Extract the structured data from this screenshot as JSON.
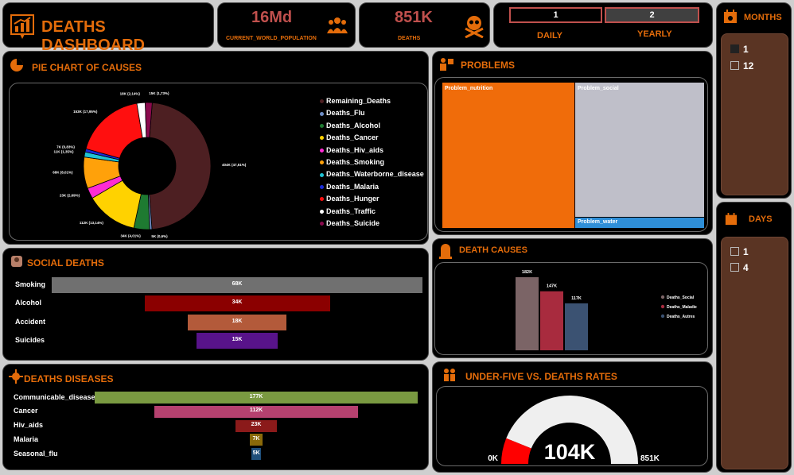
{
  "header": {
    "title": "DEATHS DASHBOARD"
  },
  "kpis": {
    "population": {
      "value": "16Md",
      "label": "CURRENT_WORLD_POPULATION"
    },
    "deaths": {
      "value": "851K",
      "label": "DEATHS"
    }
  },
  "toggle": {
    "daily": {
      "num": "1",
      "label": "DAILY"
    },
    "yearly": {
      "num": "2",
      "label": "YEARLY"
    }
  },
  "months": {
    "title": "MONTHS",
    "items": [
      {
        "label": "1",
        "checked": true
      },
      {
        "label": "12",
        "checked": false
      }
    ]
  },
  "days": {
    "title": "DAYS",
    "items": [
      {
        "label": "1",
        "checked": false
      },
      {
        "label": "4",
        "checked": false
      }
    ]
  },
  "pie": {
    "title": "PIE CHART OF CAUSES",
    "chart_data": {
      "type": "pie",
      "slices": [
        {
          "name": "Remaining_Deaths",
          "value": 404,
          "color": "#4d1f22",
          "label": "404K (47,51%)"
        },
        {
          "name": "Deaths_Flu",
          "value": 5,
          "color": "#6f8fc7",
          "label": "5K (0,6%)"
        },
        {
          "name": "Deaths_Alcohol",
          "value": 34,
          "color": "#1e7a31",
          "label": "34K (4,01%)"
        },
        {
          "name": "Deaths_Cancer",
          "value": 112,
          "color": "#ffd200",
          "label": "112K (13,14%)"
        },
        {
          "name": "Deaths_Hiv_aids",
          "value": 23,
          "color": "#ff2bd4",
          "label": "23K (2,69%)"
        },
        {
          "name": "Deaths_Smoking",
          "value": 68,
          "color": "#ffa10a",
          "label": "68K (8,01%)"
        },
        {
          "name": "Deaths_Waterborne_disease",
          "value": 11,
          "color": "#1fc3d4",
          "label": "11K (1,35%)"
        },
        {
          "name": "Deaths_Malaria",
          "value": 7,
          "color": "#1a2bd8",
          "label": "7K (0,83%)"
        },
        {
          "name": "Deaths_Hunger",
          "value": 153,
          "color": "#ff0f0f",
          "label": "153K (17,95%)"
        },
        {
          "name": "Deaths_Traffic",
          "value": 18,
          "color": "#ffffff",
          "label": "18K (2,14%)"
        },
        {
          "name": "Deaths_Suicide",
          "value": 15,
          "color": "#8a0a4d",
          "label": "15K (1,73%)"
        }
      ]
    }
  },
  "problems": {
    "title": "PROBLEMS",
    "chart_data": {
      "type": "treemap",
      "items": [
        {
          "name": "Problem_nutrition",
          "color": "#f06c0a"
        },
        {
          "name": "Problem_social",
          "color": "#bfbfc9"
        },
        {
          "name": "Problem_water",
          "color": "#2f8fd8"
        }
      ]
    }
  },
  "social": {
    "title": "SOCIAL DEATHS",
    "chart_data": {
      "type": "bar",
      "categories": [
        "Smoking",
        "Alcohol",
        "Accident",
        "Suicides"
      ],
      "values": [
        68,
        34,
        18,
        15
      ],
      "labels": [
        "68K",
        "34K",
        "18K",
        "15K"
      ],
      "colors": [
        "#707070",
        "#8b0000",
        "#b35a3a",
        "#58138a"
      ]
    }
  },
  "causes": {
    "title": "DEATH CAUSES",
    "chart_data": {
      "type": "bar",
      "categories": [
        "Deaths_Social",
        "Deaths_Maladie",
        "Deaths_Autres"
      ],
      "values": [
        182,
        147,
        117
      ],
      "labels": [
        "182K",
        "147K",
        "117K"
      ],
      "colors": [
        "#7b6466",
        "#a82b3e",
        "#3b5272"
      ]
    }
  },
  "diseases": {
    "title": "DEATHS DISEASES",
    "chart_data": {
      "type": "bar",
      "categories": [
        "Communicable_disease",
        "Cancer",
        "Hiv_aids",
        "Malaria",
        "Seasonal_flu"
      ],
      "values": [
        177,
        112,
        23,
        7,
        5
      ],
      "labels": [
        "177K",
        "112K",
        "23K",
        "7K",
        "5K"
      ],
      "colors": [
        "#7a9a41",
        "#b5416f",
        "#8b1a1a",
        "#8a6a0a",
        "#1f4f7a"
      ]
    }
  },
  "gauge": {
    "title": "UNDER-FIVE VS. DEATHS RATES",
    "value": 104,
    "max": 851,
    "value_label": "104K",
    "min_label": "0K",
    "max_label": "851K"
  }
}
